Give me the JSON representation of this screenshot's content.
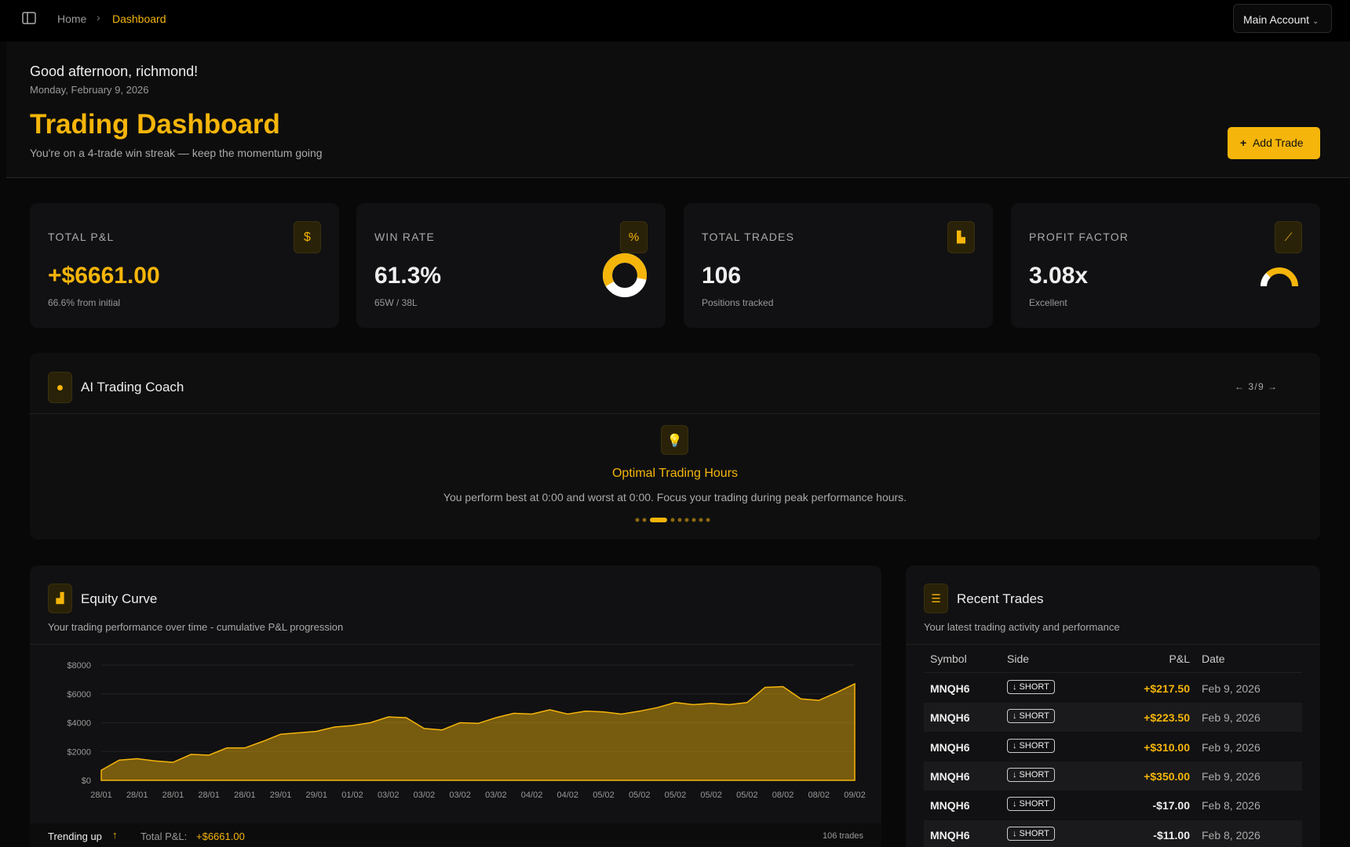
{
  "topbar": {
    "breadcrumb": [
      "Home",
      "Dashboard"
    ],
    "account": "Main Account"
  },
  "header": {
    "greeting": "Good afternoon, richmond!",
    "date": "Monday, February 9, 2026",
    "title": "Trading Dashboard",
    "subtitle": "You're on a 4-trade win streak — keep the momentum going",
    "button": "Add Trade"
  },
  "stats": [
    {
      "label": "TOTAL P&L",
      "value": "+$6661.00",
      "note": "66.6% from initial"
    },
    {
      "label": "WIN RATE",
      "value": "61.3%",
      "note": "65W / 38L"
    },
    {
      "label": "TOTAL TRADES",
      "value": "106",
      "note": "Positions tracked"
    },
    {
      "label": "PROFIT FACTOR",
      "value": "3.08x",
      "note": "Excellent"
    }
  ],
  "coach": {
    "title": "AI Trading Coach",
    "pager": "3 / 9",
    "tip_title": "Optimal Trading Hours",
    "tip_text": "You perform best at 0:00 and worst at 0:00. Focus your trading during peak performance hours."
  },
  "chart_data": {
    "type": "area",
    "title": "Equity Curve",
    "subtitle": "Your trading performance over time - cumulative P&L progression",
    "categories": [
      "28/01",
      null,
      "28/01",
      null,
      "28/01",
      null,
      "28/01",
      null,
      "28/01",
      null,
      "29/01",
      null,
      "29/01",
      null,
      "01/02",
      null,
      "03/02",
      null,
      "03/02",
      null,
      "03/02",
      null,
      "03/02",
      null,
      "04/02",
      null,
      "04/02",
      null,
      "05/02",
      null,
      "05/02",
      null,
      "05/02",
      null,
      "05/02",
      null,
      "05/02",
      null,
      "08/02",
      null,
      "08/02",
      null,
      "09/02"
    ],
    "values": [
      700,
      1400,
      1500,
      1350,
      1250,
      1800,
      1750,
      2250,
      2250,
      2700,
      3200,
      3300,
      3400,
      3700,
      3800,
      4000,
      4400,
      4350,
      3600,
      3500,
      4000,
      3950,
      4350,
      4650,
      4600,
      4900,
      4600,
      4800,
      4750,
      4600,
      4800,
      5050,
      5400,
      5250,
      5350,
      5250,
      5400,
      6450,
      6500,
      5650,
      5550,
      6100,
      6700
    ],
    "color": "#f5b50a",
    "ylim": [
      0,
      8000
    ],
    "yticks": [
      {
        "value": 0,
        "label": "$0"
      },
      {
        "value": 2000,
        "label": "$2000"
      },
      {
        "value": 4000,
        "label": "$4000"
      },
      {
        "value": 6000,
        "label": "$6000"
      },
      {
        "value": 8000,
        "label": "$8000"
      }
    ],
    "grid": true
  },
  "equity_footer": {
    "trend": "Trending up",
    "total_label": "Total P&L:",
    "total_value": "+$6661.00",
    "count": "106 trades"
  },
  "recent_trades": {
    "title": "Recent Trades",
    "subtitle": "Your latest trading activity and performance",
    "columns": [
      "Symbol",
      "Side",
      "P&L",
      "Date"
    ],
    "rows": [
      [
        "MNQH6",
        "↓ SHORT",
        "+$217.50",
        "Feb 9, 2026"
      ],
      [
        "MNQH6",
        "↓ SHORT",
        "+$223.50",
        "Feb 9, 2026"
      ],
      [
        "MNQH6",
        "↓ SHORT",
        "+$310.00",
        "Feb 9, 2026"
      ],
      [
        "MNQH6",
        "↓ SHORT",
        "+$350.00",
        "Feb 9, 2026"
      ],
      [
        "MNQH6",
        "↓ SHORT",
        "-$17.00",
        "Feb 8, 2026"
      ],
      [
        "MNQH6",
        "↓ SHORT",
        "-$11.00",
        "Feb 8, 2026"
      ]
    ]
  }
}
